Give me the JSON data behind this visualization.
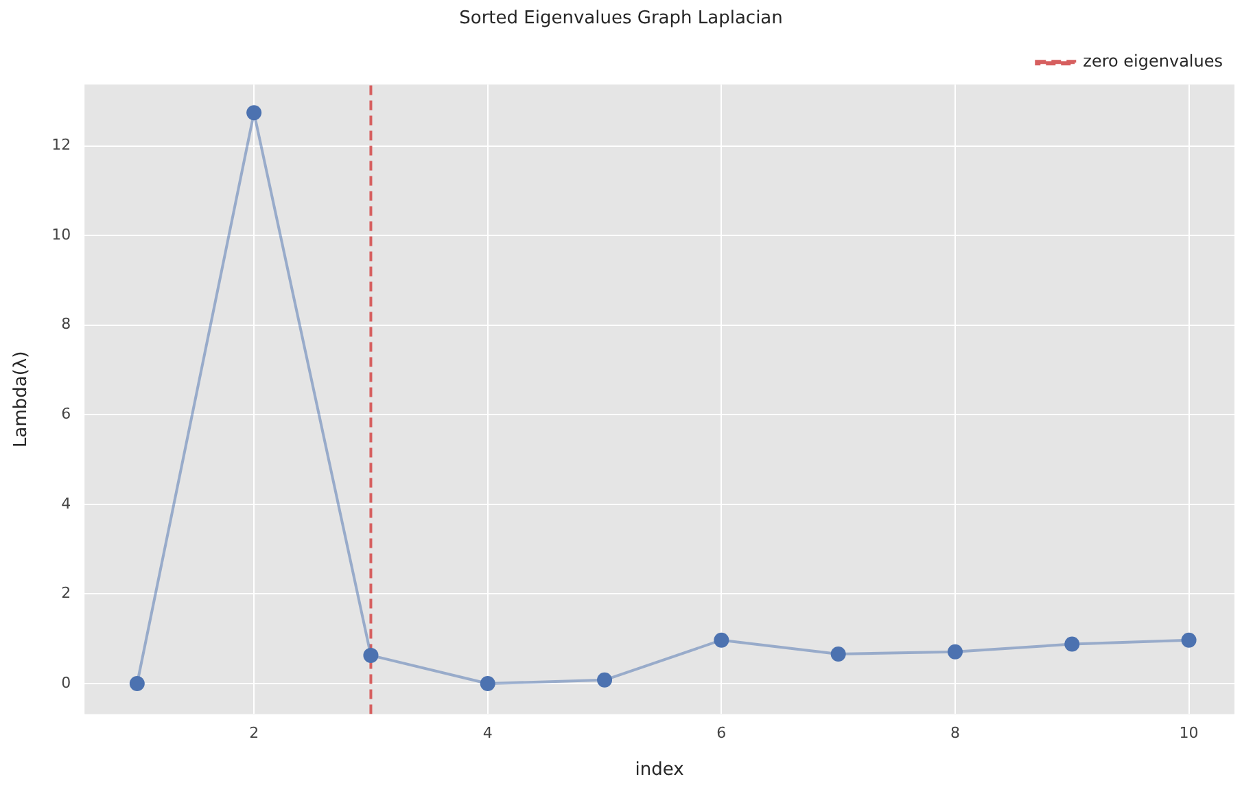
{
  "chart_data": {
    "type": "line",
    "title": "Sorted Eigenvalues Graph Laplacian",
    "xlabel": "index",
    "ylabel": "Lambda(λ)",
    "x": [
      1,
      2,
      3,
      4,
      5,
      6,
      7,
      8,
      9,
      10
    ],
    "series": [
      {
        "color": "#4c72b0",
        "values": [
          0,
          12.74,
          0.63,
          0.0,
          0.08,
          0.97,
          0.66,
          0.71,
          0.88,
          0.97
        ]
      }
    ],
    "xlim": [
      0.55,
      10.39
    ],
    "xticks": [
      2,
      4,
      6,
      8,
      10
    ],
    "ylim": [
      -0.68,
      13.37
    ],
    "yticks": [
      0,
      2,
      4,
      6,
      8,
      10,
      12
    ],
    "ref_lines": [
      {
        "axis": "x",
        "value": 3,
        "label": "zero eigenvalues",
        "color": "#d65f5f",
        "line_style": "dashed"
      }
    ],
    "grid": true,
    "legend": "top right",
    "marker": "circle",
    "line_style": "solid"
  }
}
